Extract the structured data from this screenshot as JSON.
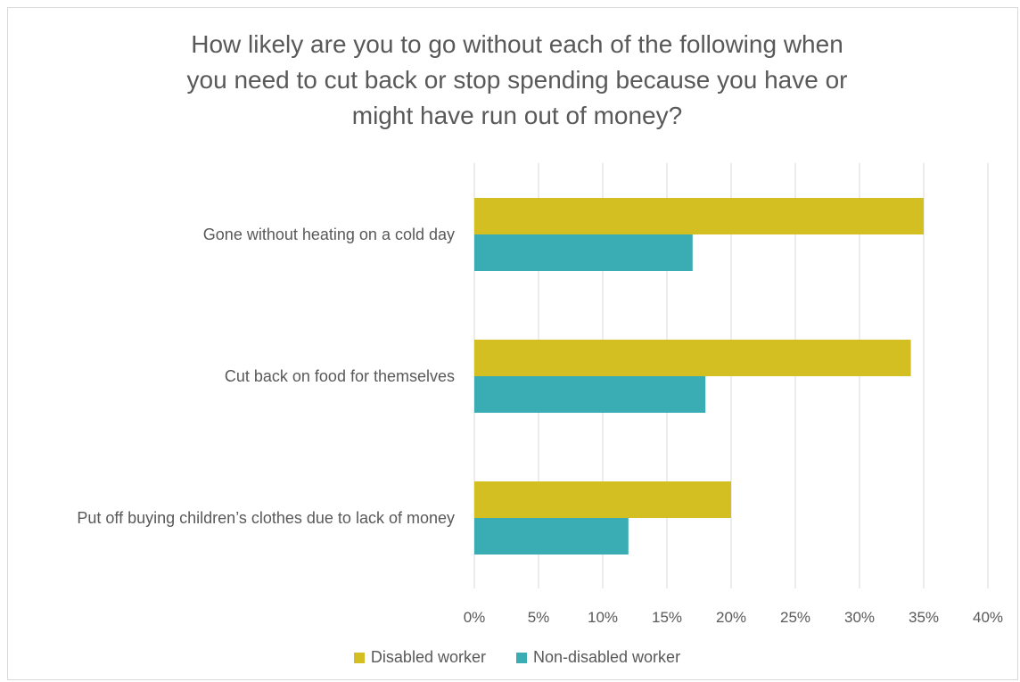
{
  "chart_data": {
    "type": "bar",
    "orientation": "horizontal",
    "title_lines": [
      "How likely are you to go without each of the following when",
      "you need to cut back or stop spending because you have or",
      "might have run out of money?"
    ],
    "categories": [
      "Gone without heating on a cold day",
      "Cut back on food for themselves",
      "Put off buying children’s clothes due to lack of money"
    ],
    "series": [
      {
        "name": "Disabled worker",
        "color": "#d4bf23",
        "values": [
          35,
          34,
          20
        ]
      },
      {
        "name": "Non-disabled worker",
        "color": "#3aadb4",
        "values": [
          17,
          18,
          12
        ]
      }
    ],
    "xlim": [
      0,
      40
    ],
    "xticks": [
      0,
      5,
      10,
      15,
      20,
      25,
      30,
      35,
      40
    ],
    "tick_suffix": "%",
    "grid": true,
    "legend_position": "bottom"
  }
}
